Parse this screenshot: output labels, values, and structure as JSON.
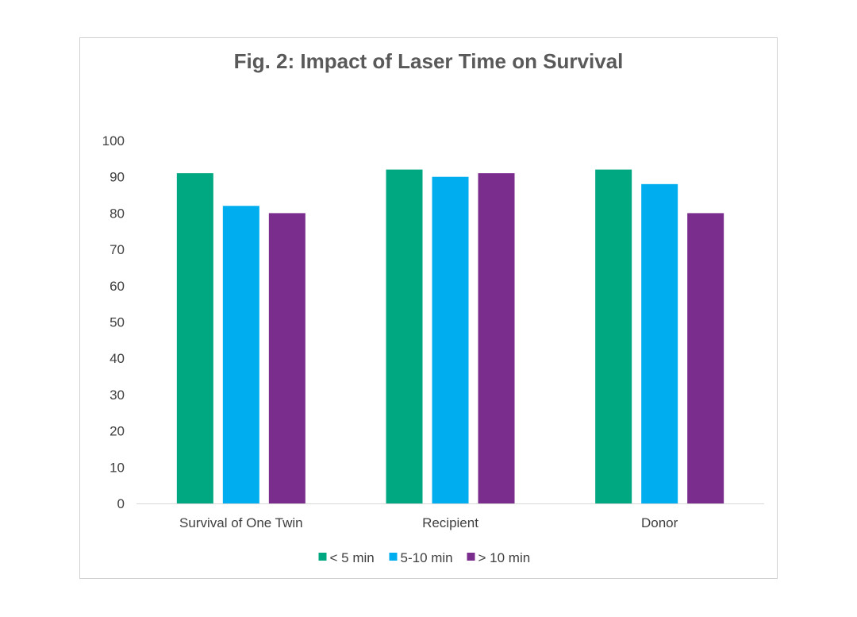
{
  "chart_data": {
    "type": "bar",
    "title": "Fig. 2: Impact of Laser Time on Survival",
    "xlabel": "",
    "ylabel": "",
    "categories": [
      "Survival of One Twin",
      "Recipient",
      "Donor"
    ],
    "series": [
      {
        "name": "< 5 min",
        "color": "#00A881",
        "values": [
          91,
          92,
          92
        ]
      },
      {
        "name": "5-10 min",
        "color": "#00AEEF",
        "values": [
          82,
          90,
          88
        ]
      },
      {
        "name": "> 10 min",
        "color": "#7B2D8E",
        "values": [
          80,
          91,
          80
        ]
      }
    ],
    "ylim": [
      0,
      100
    ],
    "yticks": [
      0,
      10,
      20,
      30,
      40,
      50,
      60,
      70,
      80,
      90,
      100
    ],
    "grid": false,
    "legend": "bottom"
  }
}
